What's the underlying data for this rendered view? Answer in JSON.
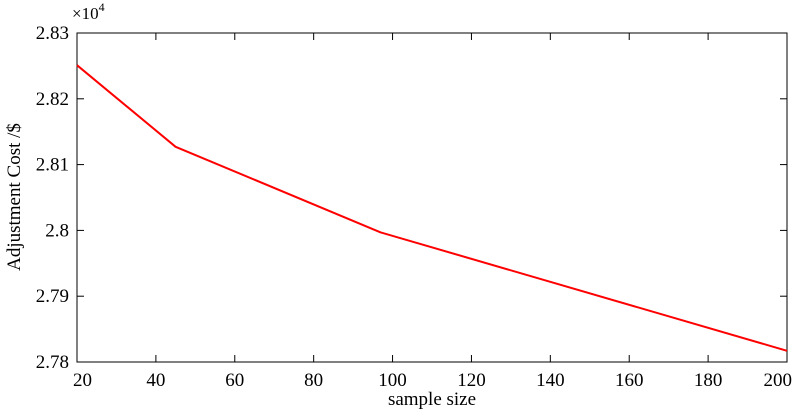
{
  "chart_data": {
    "type": "line",
    "title": "",
    "xlabel": "sample size",
    "ylabel": "Adjustment Cost /$",
    "y_multiplier_label": "×10",
    "y_multiplier_exponent": "4",
    "xlim": [
      20,
      200
    ],
    "ylim": [
      2.78,
      2.83
    ],
    "x_ticks": [
      "20",
      "40",
      "60",
      "80",
      "100",
      "120",
      "140",
      "160",
      "180",
      "200"
    ],
    "y_ticks": [
      "2.78",
      "2.79",
      "2.8",
      "2.81",
      "2.82",
      "2.83"
    ],
    "grid": false,
    "series": [
      {
        "color": "#ff0000",
        "x": [
          20,
          45,
          97,
          200
        ],
        "y": [
          2.8251,
          2.8127,
          2.7997,
          2.7817
        ]
      }
    ]
  }
}
